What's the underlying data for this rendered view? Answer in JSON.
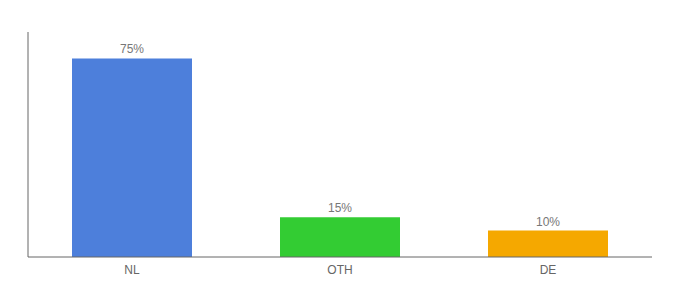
{
  "chart_data": {
    "type": "bar",
    "categories": [
      "NL",
      "OTH",
      "DE"
    ],
    "values": [
      75,
      15,
      10
    ],
    "value_labels": [
      "75%",
      "15%",
      "10%"
    ],
    "colors": [
      "#4d7fdb",
      "#33cc33",
      "#f5a800"
    ],
    "ylim": [
      0,
      85
    ],
    "data_labels": true,
    "tick_labels": "x",
    "grid": false
  }
}
